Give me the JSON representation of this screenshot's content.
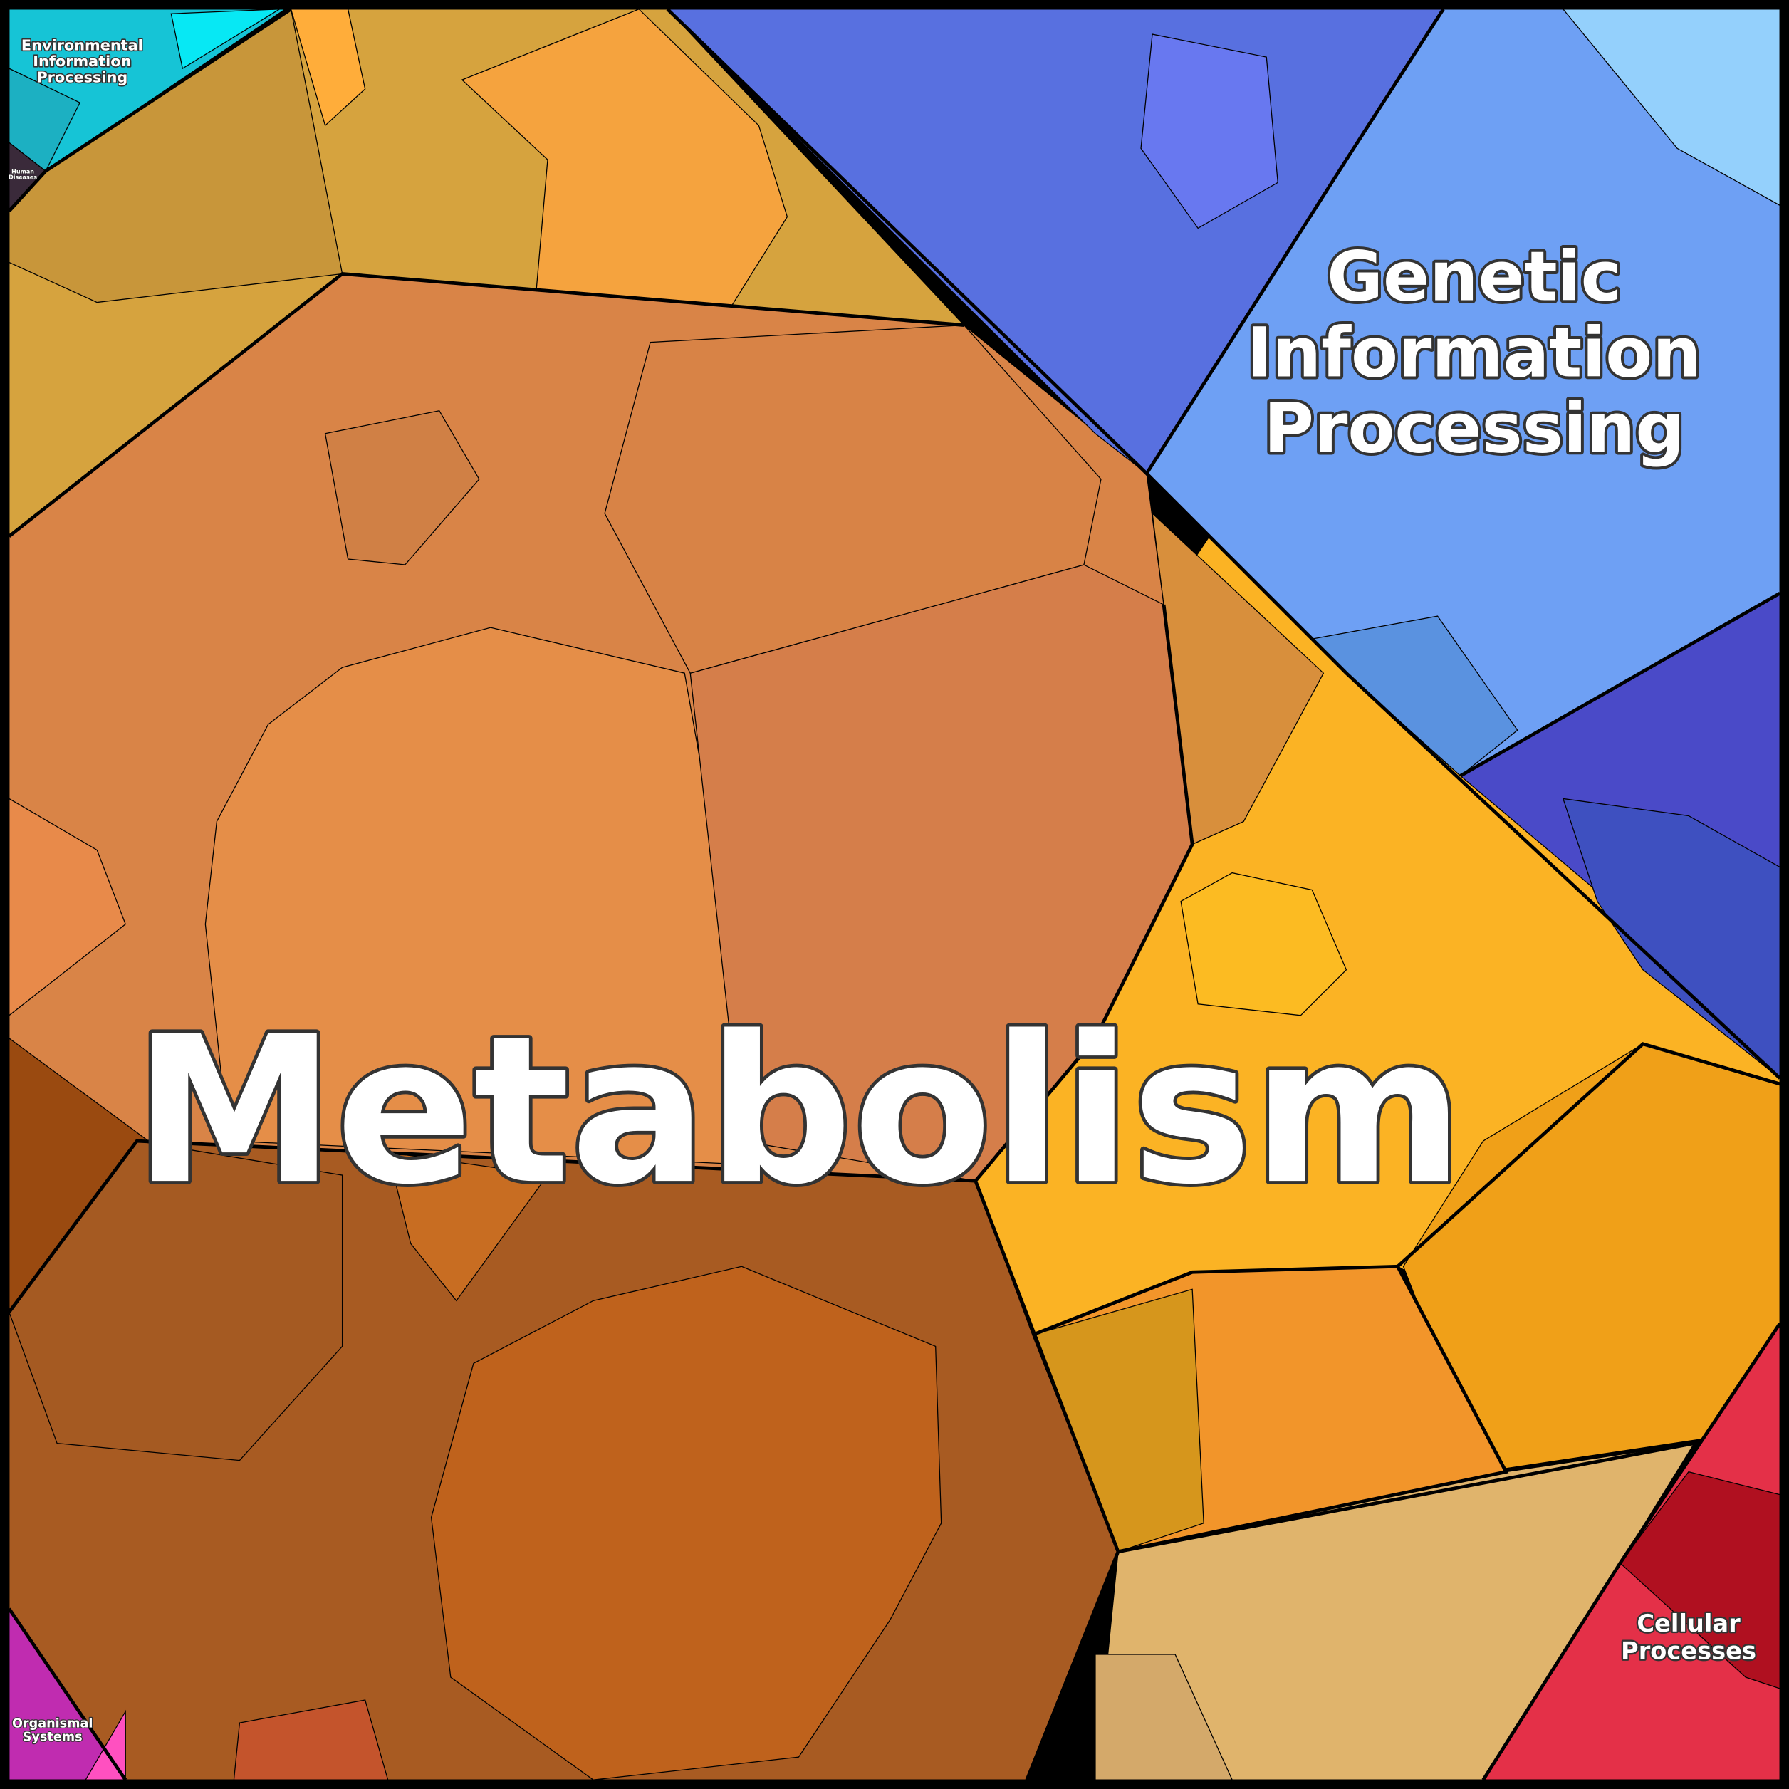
{
  "regions": [
    {
      "label": [
        "Environmental",
        "Information",
        "Processing"
      ]
    },
    {
      "label": [
        "Human",
        "Diseases"
      ]
    },
    {
      "label": [
        "Genetic",
        "Information",
        "Processing"
      ]
    },
    {
      "label": [
        "Metabolism"
      ]
    },
    {
      "label": [
        "Cellular",
        "Processes"
      ]
    },
    {
      "label": [
        "Organismal",
        "Systems"
      ]
    }
  ]
}
